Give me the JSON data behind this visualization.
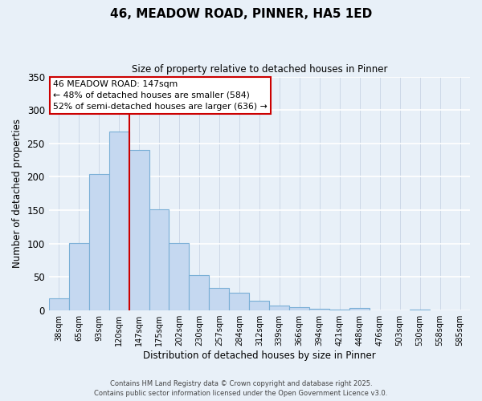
{
  "title": "46, MEADOW ROAD, PINNER, HA5 1ED",
  "subtitle": "Size of property relative to detached houses in Pinner",
  "xlabel": "Distribution of detached houses by size in Pinner",
  "ylabel": "Number of detached properties",
  "bar_labels": [
    "38sqm",
    "65sqm",
    "93sqm",
    "120sqm",
    "147sqm",
    "175sqm",
    "202sqm",
    "230sqm",
    "257sqm",
    "284sqm",
    "312sqm",
    "339sqm",
    "366sqm",
    "394sqm",
    "421sqm",
    "448sqm",
    "476sqm",
    "503sqm",
    "530sqm",
    "558sqm",
    "585sqm"
  ],
  "bar_values": [
    18,
    101,
    204,
    268,
    240,
    151,
    101,
    53,
    34,
    26,
    15,
    7,
    5,
    2,
    1,
    4,
    0,
    0,
    1,
    0,
    0
  ],
  "bar_color": "#c5d8f0",
  "bar_edge_color": "#7aafd6",
  "vline_x_index": 4,
  "vline_color": "#cc0000",
  "annotation_title": "46 MEADOW ROAD: 147sqm",
  "annotation_line1": "← 48% of detached houses are smaller (584)",
  "annotation_line2": "52% of semi-detached houses are larger (636) →",
  "annotation_box_color": "#ffffff",
  "annotation_box_edge": "#cc0000",
  "ylim": [
    0,
    350
  ],
  "yticks": [
    0,
    50,
    100,
    150,
    200,
    250,
    300,
    350
  ],
  "background_color": "#e8f0f8",
  "grid_color": "#c8d4e4",
  "footer_line1": "Contains HM Land Registry data © Crown copyright and database right 2025.",
  "footer_line2": "Contains public sector information licensed under the Open Government Licence v3.0."
}
